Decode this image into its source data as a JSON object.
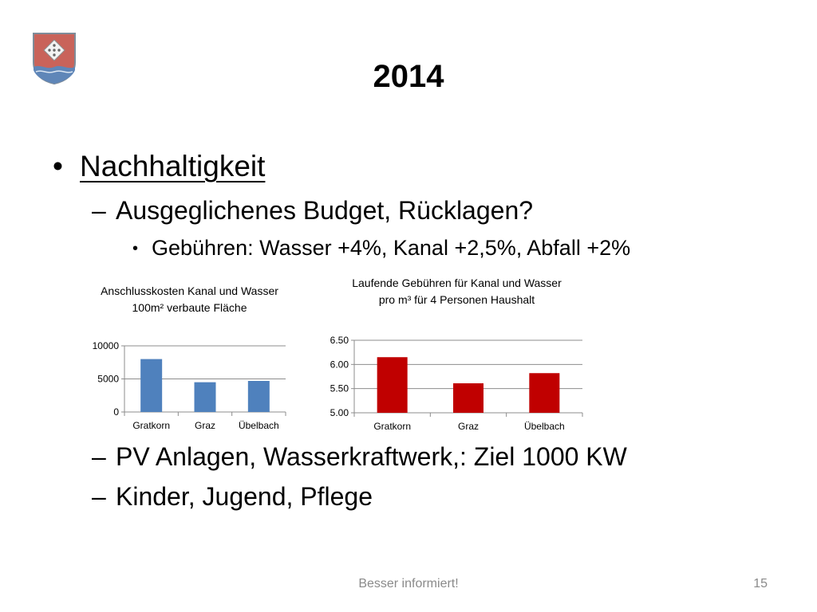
{
  "slide": {
    "title": "2014",
    "bullets": {
      "level1": "Nachhaltigkeit",
      "level2_a": "Ausgeglichenes Budget, Rücklagen?",
      "level3": "Gebühren: Wasser +4%, Kanal +2,5%, Abfall +2%",
      "level2_b": "PV Anlagen, Wasserkraftwerk,: Ziel 1000 KW",
      "level2_c": "Kinder, Jugend, Pflege"
    },
    "bullet_glyph": "•",
    "dash_glyph": "–",
    "footer": "Besser informiert!",
    "page_number": "15"
  },
  "chart_data": [
    {
      "type": "bar",
      "title": "Anschlusskosten  Kanal und Wasser 100m² verbaute Fläche",
      "categories": [
        "Gratkorn",
        "Graz",
        "Übelbach"
      ],
      "values": [
        8000,
        4500,
        4700
      ],
      "ylim": [
        0,
        10000
      ],
      "yticks": [
        "0",
        "5000",
        "10000"
      ],
      "xlabel": "",
      "ylabel": "",
      "grid": true,
      "color": "#4f81bd"
    },
    {
      "type": "bar",
      "title": "Laufende Gebühren für Kanal und Wasser pro m³ für 4 Personen Haushalt",
      "categories": [
        "Gratkorn",
        "Graz",
        "Übelbach"
      ],
      "values": [
        6.15,
        5.61,
        5.82
      ],
      "ylim": [
        5.0,
        6.5
      ],
      "yticks": [
        "5.00",
        "5.50",
        "6.00",
        "6.50"
      ],
      "xlabel": "",
      "ylabel": "",
      "grid": true,
      "color": "#c00000"
    }
  ]
}
